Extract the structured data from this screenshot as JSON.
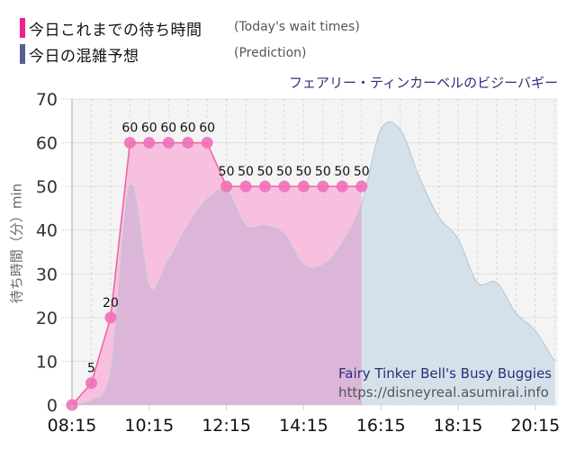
{
  "legend": {
    "today": {
      "label_jp": "今日これまでの待ち時間",
      "label_en": "(Today's wait times)",
      "color": "#f0208c"
    },
    "prediction": {
      "label_jp": "今日の混雑予想",
      "label_en": "(Prediction)",
      "color": "#5a5f8f"
    }
  },
  "ride_name_jp": "フェアリー・ティンカーベルのビジーバギー",
  "watermark": {
    "title": "Fairy Tinker Bell's Busy Buggies",
    "url": "https://disneyreal.asumirai.info"
  },
  "colors": {
    "today_fill": "#f7b6d9",
    "today_line": "#f0609f",
    "today_marker": "#f070b8",
    "prediction_fill": "#d5e1ea",
    "prediction_line": "#b7c6d3",
    "overlap_fill": "#dbb6d8",
    "plot_bg": "#f4f4f4",
    "grid": "#cccccc"
  },
  "chart_data": {
    "type": "area",
    "title": "フェアリー・ティンカーベルのビジーバギー",
    "xlabel": "",
    "ylabel": "待ち時間（分）min",
    "ylim": [
      0,
      70
    ],
    "yticks": [
      0,
      10,
      20,
      30,
      40,
      50,
      60,
      70
    ],
    "xticks": [
      "08:15",
      "10:15",
      "12:15",
      "14:15",
      "16:15",
      "18:15",
      "20:15"
    ],
    "grid": true,
    "legend_position": "top-left",
    "series": [
      {
        "name": "今日これまでの待ち時間 (Today's wait times)",
        "x": [
          "08:15",
          "08:45",
          "09:15",
          "09:45",
          "10:15",
          "10:45",
          "11:15",
          "11:45",
          "12:15",
          "12:45",
          "13:15",
          "13:45",
          "14:15",
          "14:45",
          "15:15",
          "15:45"
        ],
        "values": [
          0,
          5,
          20,
          60,
          60,
          60,
          60,
          60,
          50,
          50,
          50,
          50,
          50,
          50,
          50,
          50
        ]
      },
      {
        "name": "今日の混雑予想 (Prediction)",
        "x": [
          "08:15",
          "08:45",
          "09:15",
          "09:45",
          "10:15",
          "10:45",
          "11:15",
          "11:45",
          "12:15",
          "12:45",
          "13:15",
          "13:45",
          "14:15",
          "14:45",
          "15:15",
          "15:45",
          "16:15",
          "16:45",
          "17:15",
          "17:45",
          "18:15",
          "18:45",
          "19:15",
          "19:45",
          "20:15",
          "20:45"
        ],
        "values": [
          0,
          1,
          7,
          50,
          27,
          33,
          41,
          47,
          49,
          41,
          41,
          39,
          32,
          32,
          37,
          46,
          63,
          63,
          52,
          43,
          38,
          28,
          28,
          21,
          17,
          10
        ]
      }
    ]
  }
}
